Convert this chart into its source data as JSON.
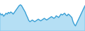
{
  "values": [
    62,
    58,
    60,
    55,
    58,
    62,
    60,
    64,
    62,
    65,
    63,
    60,
    64,
    68,
    72,
    76,
    80,
    82,
    80,
    75,
    70,
    65,
    58,
    52,
    45,
    42,
    44,
    46,
    44,
    42,
    44,
    46,
    48,
    46,
    44,
    46,
    48,
    50,
    48,
    46,
    48,
    50,
    52,
    54,
    52,
    50,
    52,
    56,
    54,
    52,
    56,
    60,
    58,
    60,
    62,
    58,
    56,
    60,
    58,
    55,
    52,
    42,
    36,
    32,
    38,
    44,
    50,
    56,
    62,
    68,
    74,
    80
  ],
  "line_color": "#3a9fd4",
  "fill_color": "#5bb8e8",
  "background_color": "#ffffff",
  "ylim_min": 20,
  "ylim_max": 95,
  "linewidth": 0.9
}
